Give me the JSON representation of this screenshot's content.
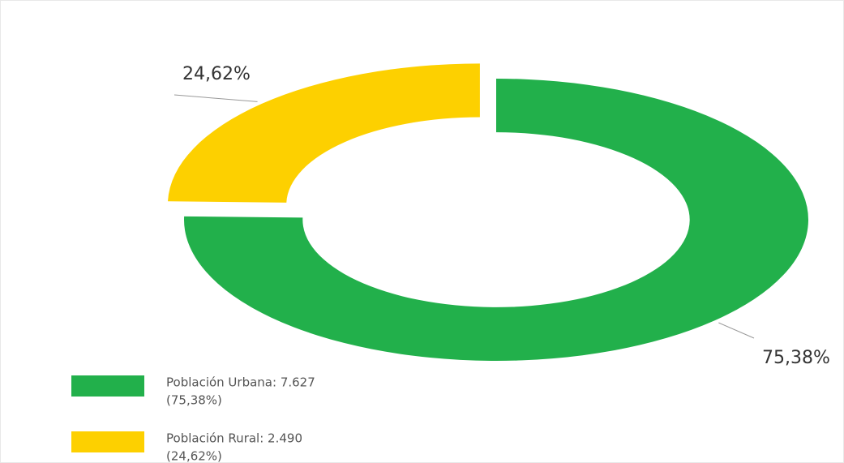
{
  "chart_data": {
    "type": "donut",
    "values": [
      75.38,
      24.62
    ],
    "value_labels": [
      "75,38%",
      "24,62%"
    ],
    "colors": [
      "#22b04b",
      "#fdd000"
    ],
    "legend_labels": [
      [
        "Población Urbana: 7.627",
        "(75,38%)"
      ],
      [
        "Población Rural: 2.490",
        "(24,62%)"
      ]
    ],
    "legend_position": "bottom-left"
  }
}
